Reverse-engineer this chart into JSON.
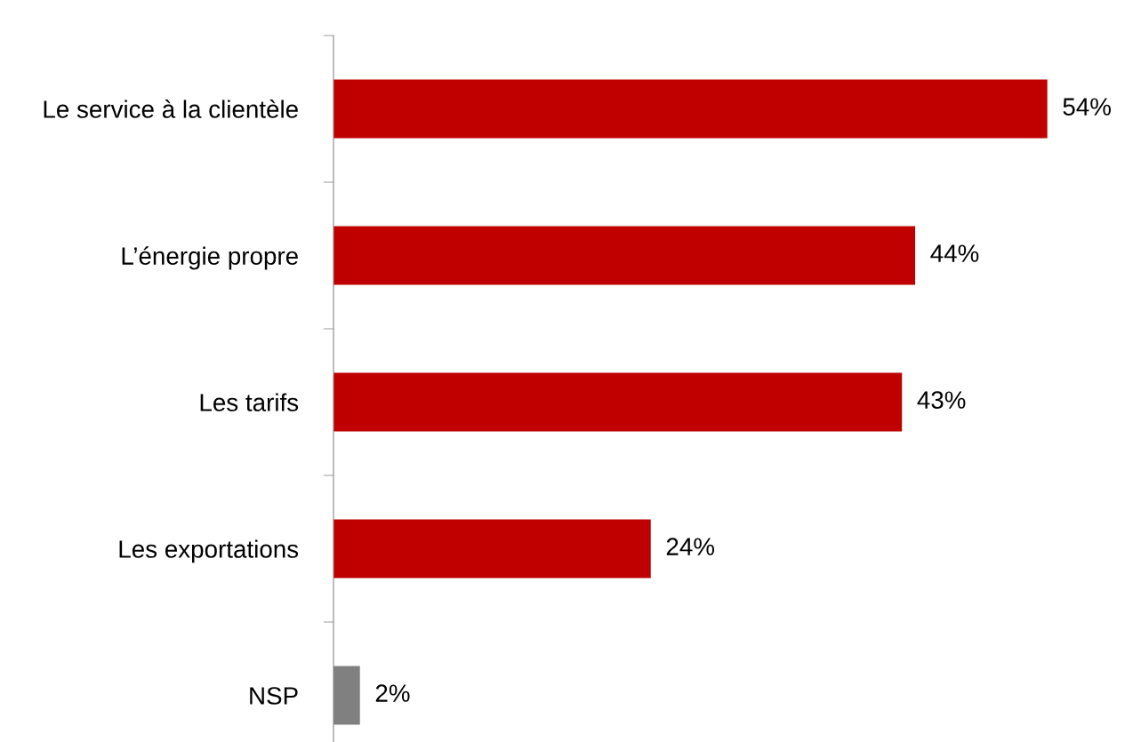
{
  "chart_data": {
    "type": "bar",
    "orientation": "horizontal",
    "categories": [
      "Le service à la clientèle",
      "L’énergie propre",
      "Les tarifs",
      "Les exportations",
      "NSP"
    ],
    "values": [
      54,
      44,
      43,
      24,
      2
    ],
    "value_labels": [
      "54%",
      "44%",
      "43%",
      "24%",
      "2%"
    ],
    "colors": [
      "#c00000",
      "#c00000",
      "#c00000",
      "#c00000",
      "#808080"
    ],
    "grid": false,
    "legend": false
  }
}
